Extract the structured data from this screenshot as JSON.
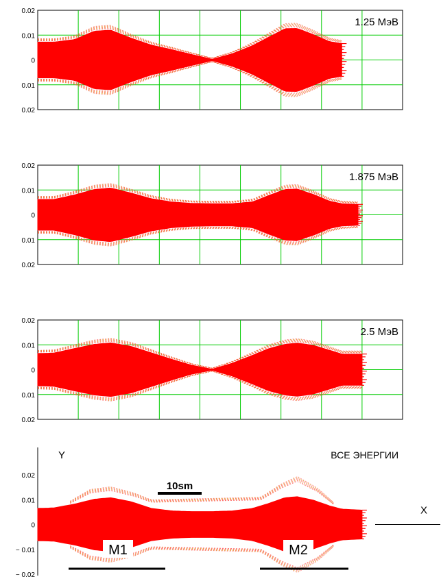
{
  "chart_data": [
    {
      "type": "area",
      "title": "1.25 МэВ",
      "xlabel": "",
      "ylabel": "",
      "yticks": [
        "0.02",
        "0.01",
        "0",
        "0.01",
        "0.02"
      ],
      "ylim": [
        -0.02,
        0.02
      ],
      "xlim": [
        0,
        9
      ],
      "grid": true,
      "color": "#ff0000",
      "series": [
        {
          "x": [
            0,
            0.4,
            0.9,
            1.4,
            1.8,
            2.3,
            2.8,
            3.3,
            3.8,
            4.3,
            4.8,
            5.3,
            5.7,
            6.1,
            6.4,
            6.8,
            7.2,
            7.5
          ],
          "values": [
            0.0072,
            0.0072,
            0.0082,
            0.0116,
            0.012,
            0.0088,
            0.006,
            0.0042,
            0.0022,
            0.0003,
            0.0025,
            0.0058,
            0.0092,
            0.0126,
            0.0127,
            0.0102,
            0.0074,
            0.0066
          ]
        }
      ]
    },
    {
      "type": "area",
      "title": "1.875 МэВ",
      "xlabel": "",
      "ylabel": "",
      "yticks": [
        "0.02",
        "0.01",
        "0",
        "0.01",
        "0.02"
      ],
      "ylim": [
        -0.02,
        0.02
      ],
      "xlim": [
        0,
        9
      ],
      "grid": true,
      "color": "#ff0000",
      "series": [
        {
          "x": [
            0,
            0.4,
            0.9,
            1.4,
            1.8,
            2.3,
            2.8,
            3.3,
            3.8,
            4.3,
            4.8,
            5.3,
            5.7,
            6.1,
            6.4,
            6.8,
            7.2,
            7.5,
            7.9
          ],
          "values": [
            0.0062,
            0.0062,
            0.008,
            0.0102,
            0.0108,
            0.0088,
            0.0065,
            0.0052,
            0.0046,
            0.0045,
            0.0045,
            0.0052,
            0.0078,
            0.0102,
            0.0104,
            0.0082,
            0.0055,
            0.0045,
            0.0042
          ]
        }
      ]
    },
    {
      "type": "area",
      "title": "2.5 МэВ",
      "xlabel": "",
      "ylabel": "",
      "yticks": [
        "0.02",
        "0.01",
        "0",
        "0.01",
        "0.02"
      ],
      "ylim": [
        -0.02,
        0.02
      ],
      "xlim": [
        0,
        9
      ],
      "grid": true,
      "color": "#ff0000",
      "series": [
        {
          "x": [
            0,
            0.4,
            0.9,
            1.4,
            1.8,
            2.3,
            2.8,
            3.3,
            3.8,
            4.3,
            4.8,
            5.3,
            5.7,
            6.1,
            6.4,
            6.8,
            7.2,
            7.5,
            8.0
          ],
          "values": [
            0.0065,
            0.0067,
            0.0085,
            0.0102,
            0.0108,
            0.0094,
            0.0068,
            0.0042,
            0.0018,
            0.0002,
            0.0026,
            0.0058,
            0.0085,
            0.0102,
            0.0107,
            0.0098,
            0.0078,
            0.0063,
            0.0063
          ]
        }
      ]
    },
    {
      "type": "area",
      "title": "ВСЕ ЭНЕРГИИ",
      "xlabel": "X",
      "ylabel": "Y",
      "yticks": [
        "0.02",
        "0.01",
        "0",
        "− 0.01",
        "− 0.02"
      ],
      "ylim": [
        -0.02,
        0.02
      ],
      "xlim": [
        0,
        9
      ],
      "grid": false,
      "color": "#ff0000",
      "scale_bar": "10sm",
      "markers": [
        "M1",
        "M2"
      ],
      "series": [
        {
          "x": [
            0,
            0.4,
            0.9,
            1.4,
            1.8,
            2.3,
            2.8,
            3.3,
            3.8,
            4.3,
            4.8,
            5.3,
            5.7,
            6.1,
            6.4,
            6.8,
            7.2,
            7.5,
            8.0
          ],
          "values": [
            0.0065,
            0.0067,
            0.0082,
            0.0102,
            0.0108,
            0.0092,
            0.0065,
            0.0055,
            0.0052,
            0.0052,
            0.0055,
            0.0065,
            0.0085,
            0.0108,
            0.0112,
            0.0098,
            0.0075,
            0.0062,
            0.0058
          ]
        }
      ],
      "outline": {
        "x": [
          0.8,
          1.3,
          1.8,
          2.4,
          2.8,
          5.5,
          6.0,
          6.4,
          6.9,
          7.3
        ],
        "values": [
          0.009,
          0.0135,
          0.0145,
          0.012,
          0.0095,
          0.0105,
          0.0155,
          0.0185,
          0.014,
          0.0085
        ]
      }
    }
  ]
}
